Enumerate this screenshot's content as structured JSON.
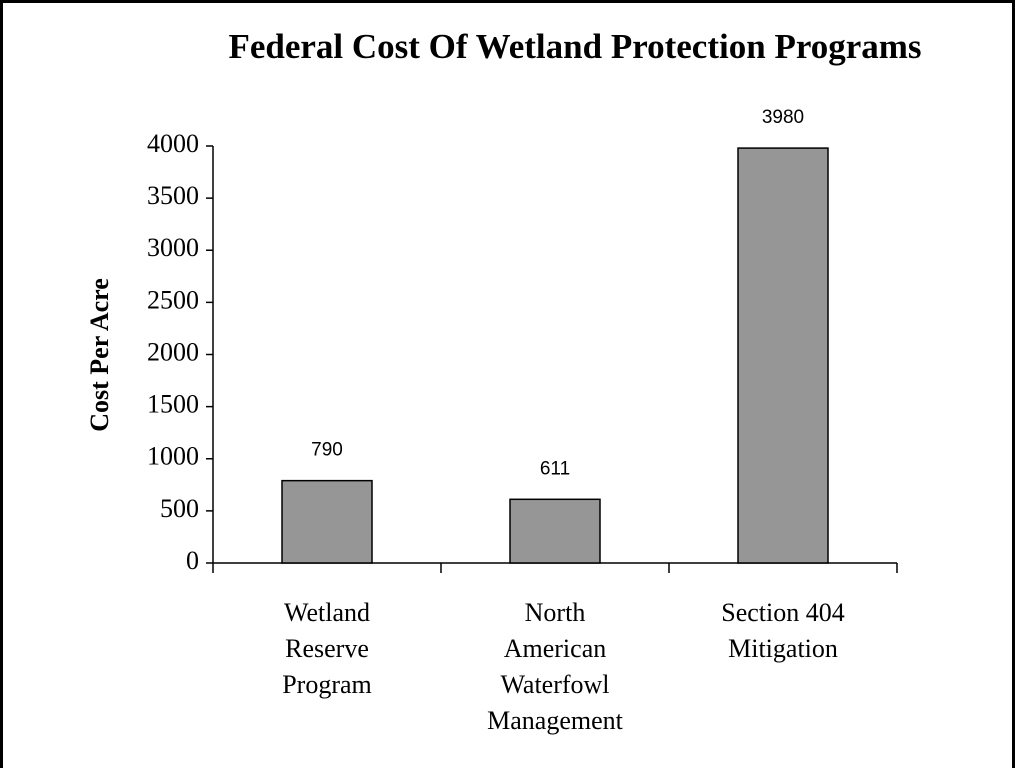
{
  "chart_data": {
    "type": "bar",
    "title": "Federal Cost Of Wetland Protection Programs",
    "y_label": "Cost Per Acre",
    "categories": [
      "Wetland Reserve Program",
      "North American Waterfowl Management",
      "Section 404 Mitigation"
    ],
    "values": [
      790,
      611,
      3980
    ],
    "color": "#969696",
    "ylim": [
      0,
      4000
    ],
    "yticks": [
      0,
      500,
      1000,
      1500,
      2000,
      2500,
      3000,
      3500,
      4000
    ],
    "grid": false
  }
}
